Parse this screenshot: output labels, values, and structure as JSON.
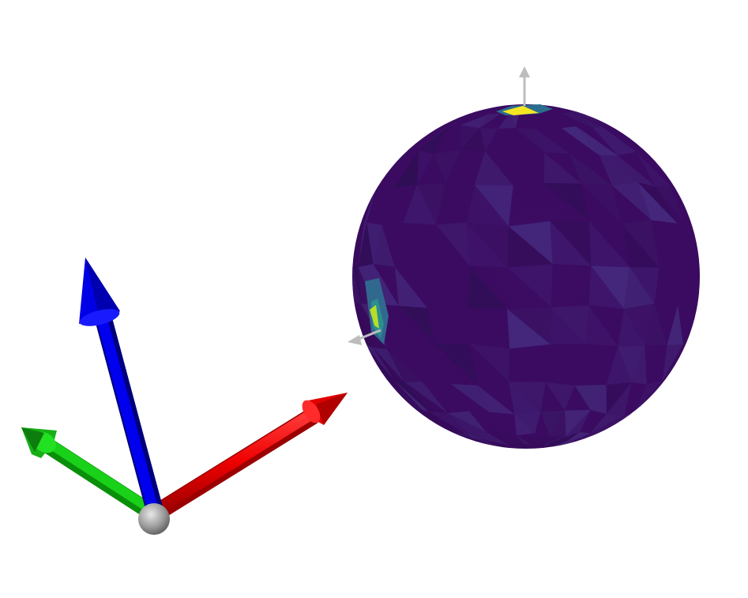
{
  "scene": {
    "background": "#ffffff",
    "axes": {
      "x_color": "#ff0000",
      "y_color": "#00cc00",
      "z_color": "#0000ff",
      "origin_color": "#9a9a9a"
    },
    "sphere": {
      "base_color": "#3a0a5e",
      "facet_colors": [
        "#3f1a6e",
        "#432878",
        "#3b1766",
        "#462d80",
        "#2f0f55"
      ],
      "hotspot_colors": [
        "#f5e624",
        "#b7de2a",
        "#2b8f8e",
        "#31688e"
      ],
      "normal_arrow_color": "#bbbbbb"
    }
  }
}
